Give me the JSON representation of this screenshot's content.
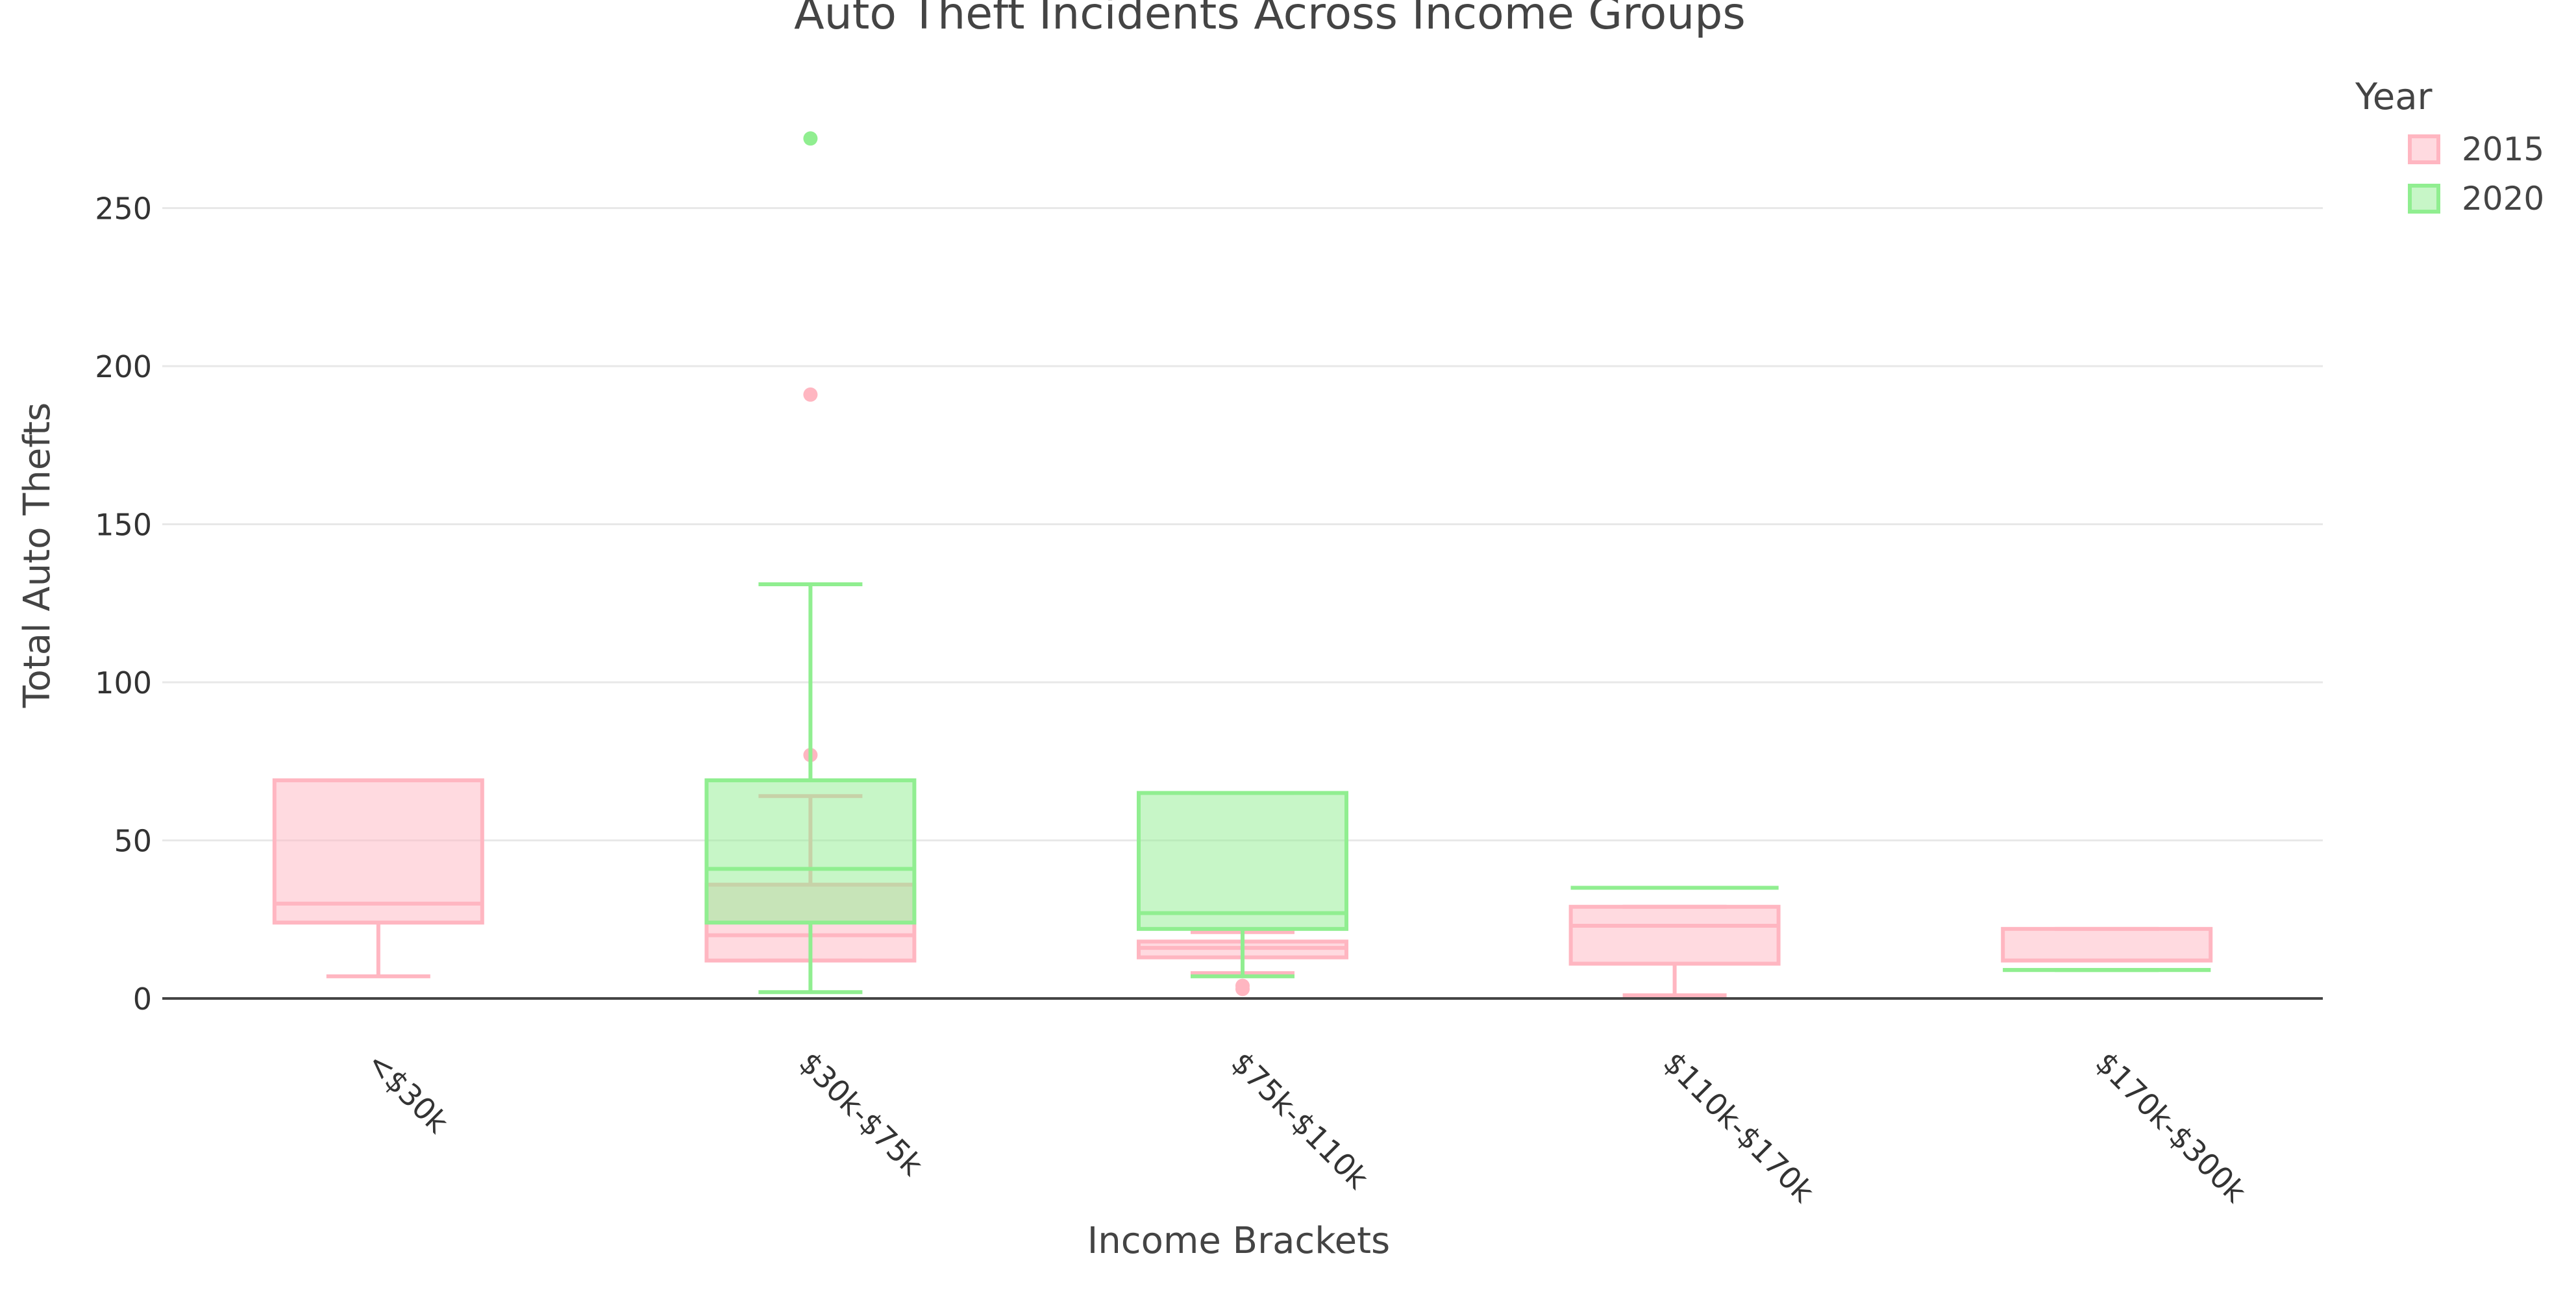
{
  "chart_data": {
    "type": "box",
    "title": "Auto Theft Incidents Across Income Groups",
    "xlabel": "Income Brackets",
    "ylabel": "Total Auto Thefts",
    "ylim": [
      0,
      285
    ],
    "yticks": [
      0,
      50,
      100,
      150,
      200,
      250
    ],
    "grid": true,
    "categories": [
      "<$30k",
      "$30k-$75k",
      "$75k-$110k",
      "$110k-$170k",
      "$170k-$300k"
    ],
    "legend": {
      "title": "Year",
      "position": "top-right"
    },
    "series": [
      {
        "name": "2015",
        "color": "#ffb6c1",
        "fill": "rgba(255,182,193,0.5)",
        "boxes": [
          {
            "category": "<$30k",
            "lowerfence": 7,
            "q1": 24,
            "median": 30,
            "q3": 69,
            "upperfence": 69,
            "outliers": []
          },
          {
            "category": "$30k-$75k",
            "lowerfence": 12,
            "q1": 12,
            "median": 20,
            "q3": 36,
            "upperfence": 64,
            "outliers": [
              77,
              191
            ]
          },
          {
            "category": "$75k-$110k",
            "lowerfence": 8,
            "q1": 13,
            "median": 16,
            "q3": 18,
            "upperfence": 21,
            "outliers": [
              3,
              4
            ]
          },
          {
            "category": "$110k-$170k",
            "lowerfence": 1,
            "q1": 11,
            "median": 23,
            "q3": 29,
            "upperfence": 29,
            "outliers": []
          },
          {
            "category": "$170k-$300k",
            "lowerfence": 12,
            "q1": 12,
            "median": 12,
            "q3": 22,
            "upperfence": 22,
            "outliers": []
          }
        ]
      },
      {
        "name": "2020",
        "color": "#90ee90",
        "fill": "rgba(144,238,144,0.5)",
        "boxes": [
          {
            "category": "$30k-$75k",
            "lowerfence": 2,
            "q1": 24,
            "median": 41,
            "q3": 69,
            "upperfence": 131,
            "outliers": [
              272
            ]
          },
          {
            "category": "$75k-$110k",
            "lowerfence": 7,
            "q1": 22,
            "median": 27,
            "q3": 65,
            "upperfence": 65,
            "outliers": []
          },
          {
            "category": "$110k-$170k",
            "lowerfence": 35,
            "q1": 35,
            "median": 35,
            "q3": 35,
            "upperfence": 35,
            "outliers": []
          },
          {
            "category": "$170k-$300k",
            "lowerfence": 9,
            "q1": 9,
            "median": 9,
            "q3": 9,
            "upperfence": 9,
            "outliers": []
          }
        ]
      }
    ]
  },
  "colors": {
    "grid": "#e8e8e8",
    "axis": "#444444",
    "text": "#333333"
  }
}
